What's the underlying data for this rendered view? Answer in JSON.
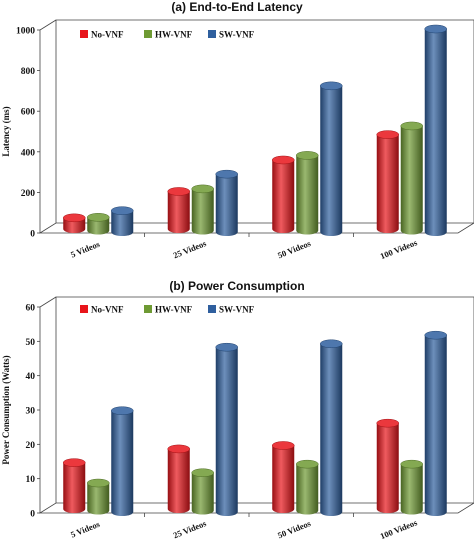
{
  "colors": {
    "No-VNF": "#e8151b",
    "HW-VNF": "#6e9a33",
    "SW-VNF": "#2f5f9e"
  },
  "chart_data": [
    {
      "type": "bar",
      "title": "(a) End-to-End Latency",
      "xlabel": "",
      "ylabel": "Latency (ms)",
      "ylim": [
        0,
        1000
      ],
      "yticks": [
        "0",
        "200",
        "400",
        "600",
        "800",
        "1000"
      ],
      "grid": false,
      "legend_position": "top-left",
      "categories": [
        "5 Videos",
        "25 Videos",
        "50 Videos",
        "100 Videos"
      ],
      "series": [
        {
          "name": "No-VNF",
          "values": [
            55,
            185,
            340,
            465
          ]
        },
        {
          "name": "HW-VNF",
          "values": [
            65,
            205,
            370,
            515
          ]
        },
        {
          "name": "SW-VNF",
          "values": [
            105,
            285,
            720,
            1000
          ]
        }
      ]
    },
    {
      "type": "bar",
      "title": "(b) Power Consumption",
      "xlabel": "",
      "ylabel": "Power Consumption (Watts)",
      "ylim": [
        0,
        60
      ],
      "yticks": [
        "0",
        "10",
        "20",
        "30",
        "40",
        "50",
        "60"
      ],
      "grid": false,
      "legend_position": "top-left",
      "categories": [
        "5 Videos",
        "25 Videos",
        "50 Videos",
        "100 Videos"
      ],
      "series": [
        {
          "name": "No-VNF",
          "values": [
            13.5,
            17.5,
            18.5,
            25
          ]
        },
        {
          "name": "HW-VNF",
          "values": [
            8,
            11,
            13.5,
            13.5
          ]
        },
        {
          "name": "SW-VNF",
          "values": [
            29.5,
            48,
            49,
            51.5
          ]
        }
      ]
    }
  ]
}
